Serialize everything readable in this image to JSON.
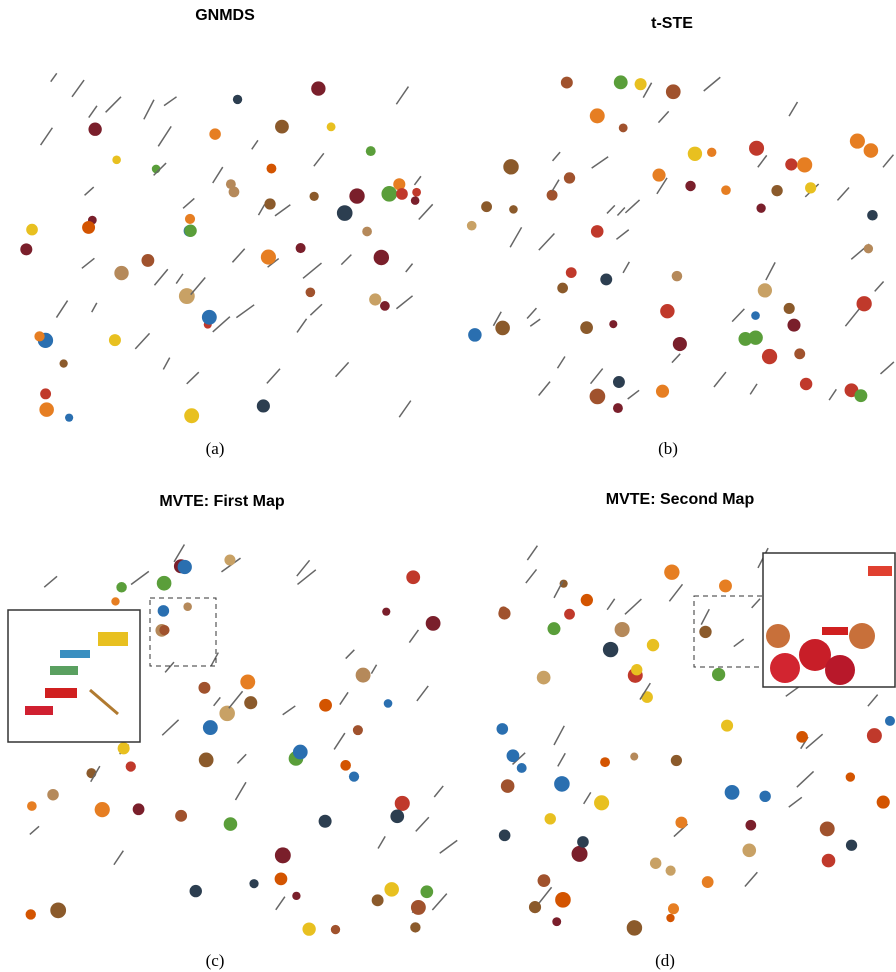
{
  "panels": [
    {
      "title": "GNMDS",
      "caption": "(a)"
    },
    {
      "title": "t-STE",
      "caption": "(b)"
    },
    {
      "title": "MVTE: First Map",
      "caption": "(c)"
    },
    {
      "title": "MVTE: Second Map",
      "caption": "(d)"
    }
  ]
}
